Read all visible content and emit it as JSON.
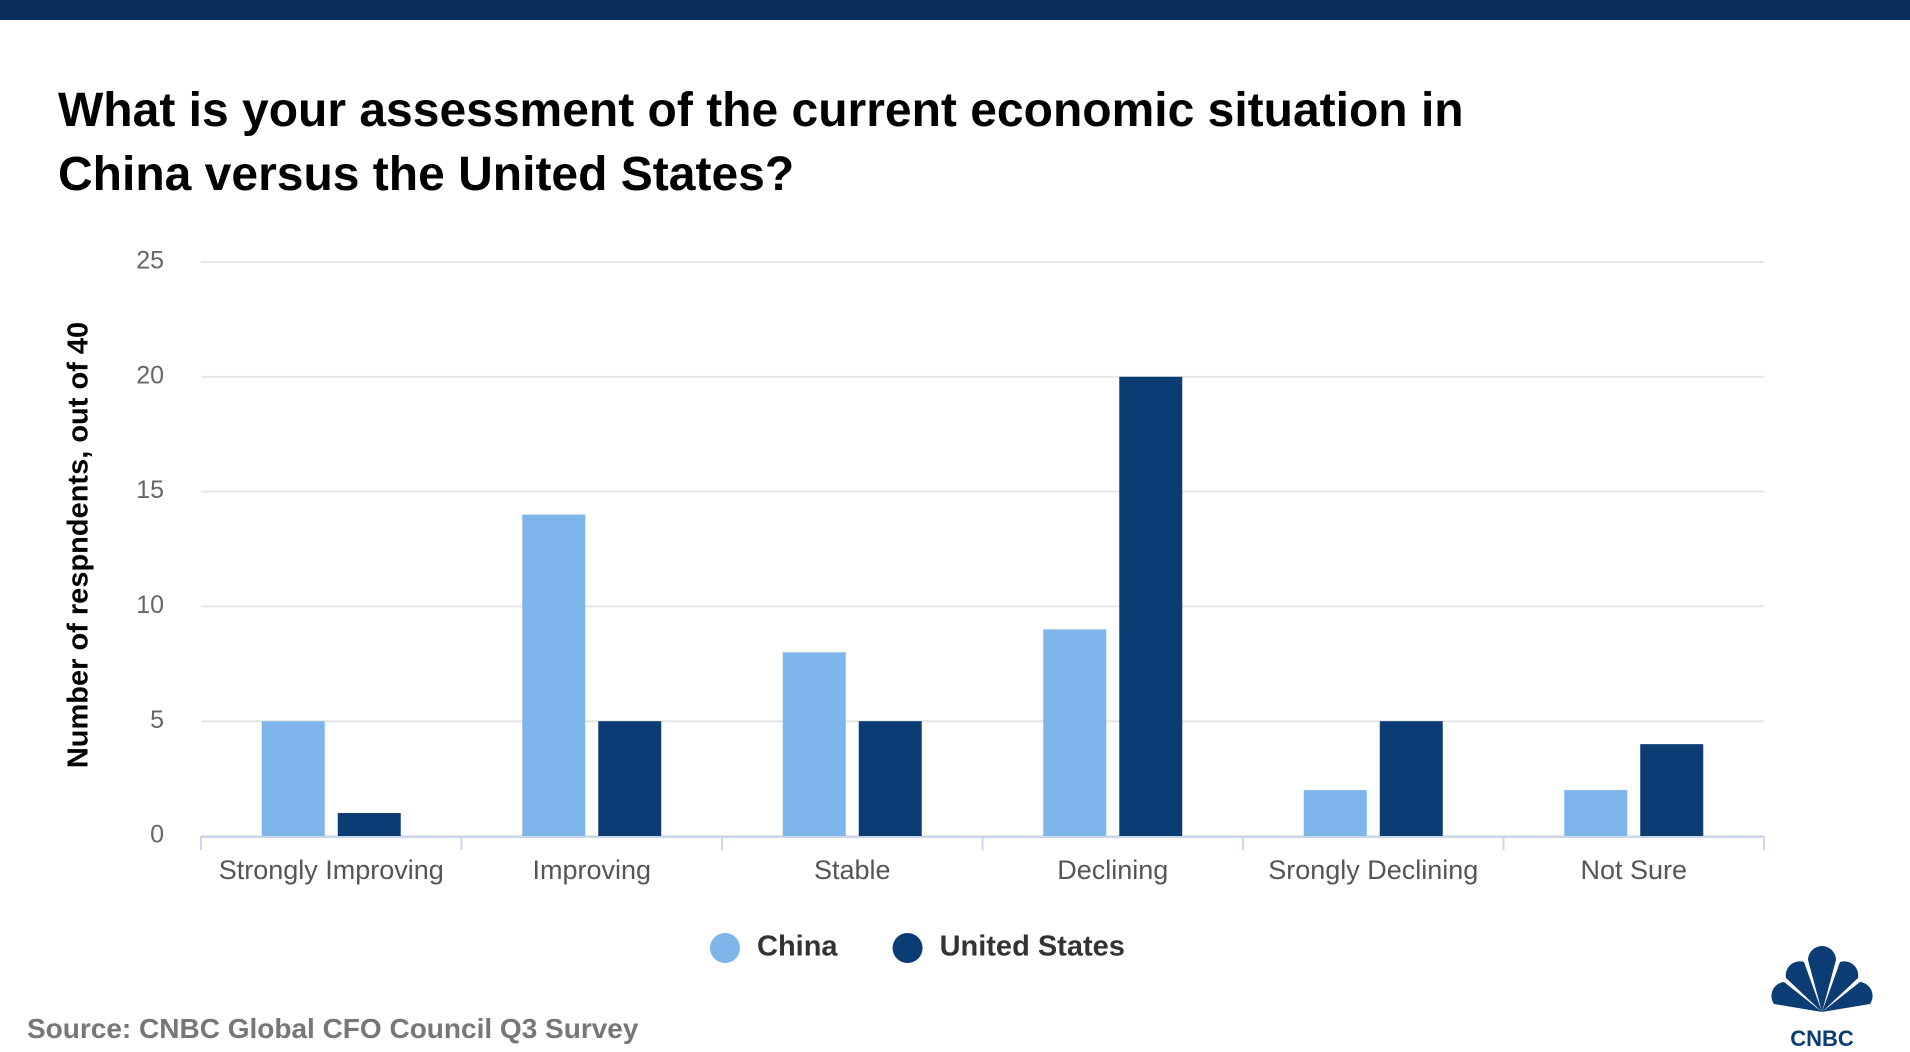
{
  "chart_data": {
    "type": "bar",
    "title": [
      "What is your assessment of the current economic situation in",
      "China versus the United States?"
    ],
    "y_label": "Number of respndents, out of 40",
    "categories": [
      "Strongly Improving",
      "Improving",
      "Stable",
      "Declining",
      "Srongly Declining",
      "Not Sure"
    ],
    "series": [
      {
        "name": "China",
        "color": "#7eb5ea",
        "values": [
          5,
          14,
          8,
          9,
          2,
          2
        ]
      },
      {
        "name": "United States",
        "color": "#0b3c73",
        "values": [
          1,
          5,
          5,
          20,
          5,
          4
        ]
      }
    ],
    "ylim": [
      0,
      25
    ],
    "yticks": [
      0,
      5,
      10,
      15,
      20,
      25
    ],
    "grid": true,
    "legend": "bottom",
    "source": "Source: CNBC Global CFO Council Q3 Survey",
    "logo": "CNBC"
  }
}
